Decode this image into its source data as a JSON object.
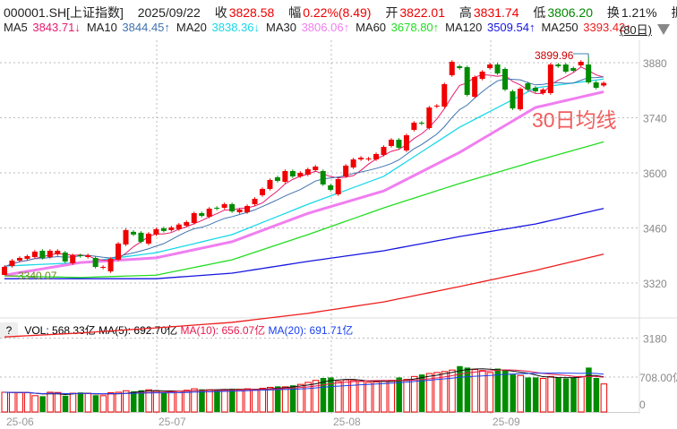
{
  "header": {
    "code": "000001.SH[上证指数]",
    "date": "2025/09/22",
    "close_label": "收",
    "close": "3828.58",
    "change_label": "幅",
    "change": "0.22%(8.49)",
    "open_label": "开",
    "open": "3822.01",
    "high_label": "高",
    "high": "3831.74",
    "low_label": "低",
    "low": "3806.20",
    "turnover_label": "换",
    "turnover": "1.21%",
    "amp_label": "振",
    "more": "..."
  },
  "ma_legend": [
    {
      "label": "MA5",
      "value": "3843.71↓",
      "color": "#e8196e"
    },
    {
      "label": "MA10",
      "value": "3844.45↑",
      "color": "#3f72b0"
    },
    {
      "label": "MA20",
      "value": "3838.36↓",
      "color": "#19d8e8"
    },
    {
      "label": "MA30",
      "value": "3806.06↑",
      "color": "#f07ef0"
    },
    {
      "label": "MA60",
      "value": "3678.80↑",
      "color": "#22dd22"
    },
    {
      "label": "MA120",
      "value": "3509.54↑",
      "color": "#1515e0"
    },
    {
      "label": "MA250",
      "value": "3393.42↑",
      "color": "#ee1c1c"
    }
  ],
  "period": "(80日)",
  "annotation": "30日均线",
  "high_marker": "3899.96",
  "low_marker": "3340.07",
  "y_axis": [
    "3880",
    "3740",
    "3600",
    "3460",
    "3320",
    "3180"
  ],
  "vol_axis": [
    "708.00亿",
    "0"
  ],
  "x_axis": [
    "25-06",
    "25-07",
    "25-08",
    "25-09"
  ],
  "vol_legend": {
    "help": "?",
    "vol": "VOL: 568.33亿",
    "ma5": "MA(5): 692.70亿",
    "ma10": "MA(10): 656.07亿",
    "ma20": "MA(20): 691.71亿"
  },
  "colors": {
    "up": "#f00000",
    "down": "#008c00"
  },
  "chart_data": {
    "type": "candlestick",
    "ylim": [
      3160,
      3910
    ],
    "open": [
      3340.6,
      3363.3,
      3377.0,
      3381.5,
      3386.1,
      3402.0,
      3386.1,
      3392.9,
      3397.5,
      3370.2,
      3390.7,
      3386.1,
      3383.8,
      3358.8,
      3349.7,
      3379.3,
      3418.0,
      3450.1,
      3447.8,
      3420.2,
      3443.3,
      3459.1,
      3454.6,
      3456.9,
      3465.8,
      3472.6,
      3497.6,
      3488.5,
      3511.3,
      3511.3,
      3520.4,
      3499.9,
      3499.9,
      3520.4,
      3543.2,
      3559.1,
      3588.7,
      3577.3,
      3604.6,
      3591.0,
      3595.5,
      3606.9,
      3604.6,
      3568.2,
      3545.4,
      3591.0,
      3613.7,
      3634.2,
      3634.2,
      3634.2,
      3645.6,
      3668.3,
      3684.3,
      3656.9,
      3709.3,
      3727.5,
      3713.9,
      3768.5,
      3768.5,
      3848.1,
      3870.9,
      3868.6,
      3793.5,
      3839.0,
      3866.3,
      3875.4,
      3864.1,
      3807.2,
      3761.6,
      3827.6,
      3816.3,
      3802.6,
      3802.6,
      3875.4,
      3875.4,
      3866.3,
      3873.2,
      3875.4,
      3830.0,
      3822.01
    ],
    "close": [
      3361.0,
      3377.0,
      3383.8,
      3388.4,
      3399.8,
      3383.8,
      3402.0,
      3402.0,
      3374.7,
      3390.7,
      3388.4,
      3390.7,
      3361.0,
      3361.0,
      3381.5,
      3420.2,
      3454.6,
      3443.3,
      3424.8,
      3445.5,
      3456.9,
      3452.3,
      3461.4,
      3468.6,
      3474.9,
      3497.6,
      3490.8,
      3509.0,
      3509.0,
      3520.4,
      3502.2,
      3506.7,
      3515.8,
      3534.0,
      3559.1,
      3581.9,
      3579.6,
      3604.6,
      3591.0,
      3600.1,
      3609.2,
      3616.0,
      3570.5,
      3556.8,
      3584.1,
      3618.3,
      3634.2,
      3638.7,
      3636.5,
      3647.8,
      3666.0,
      3684.3,
      3663.8,
      3695.6,
      3727.5,
      3725.2,
      3766.2,
      3770.8,
      3825.4,
      3882.3,
      3866.3,
      3798.1,
      3843.6,
      3857.2,
      3875.4,
      3852.7,
      3811.7,
      3763.9,
      3814.0,
      3811.7,
      3807.2,
      3811.7,
      3875.4,
      3870.9,
      3857.2,
      3859.5,
      3882.3,
      3830.0,
      3816.3,
      3828.58
    ],
    "ma_samples_every_10_days": {
      "MA20": [
        3363,
        3372,
        3397,
        3443,
        3520,
        3591,
        3716,
        3816,
        3838.36
      ],
      "MA30": [
        3340,
        3372,
        3384,
        3425,
        3497,
        3554,
        3652,
        3766,
        3806.06
      ],
      "MA60": [
        3338,
        3334,
        3340,
        3379,
        3443,
        3511,
        3573,
        3630,
        3678.8
      ],
      "MA120": [
        3331,
        3331,
        3331,
        3345,
        3375,
        3402,
        3438,
        3470,
        3509.54
      ],
      "MA250": [
        3183,
        3193,
        3206,
        3220,
        3243,
        3272,
        3311,
        3352,
        3393.42
      ]
    },
    "volume": [
      400,
      395,
      390,
      395,
      330,
      320,
      400,
      395,
      330,
      380,
      395,
      380,
      340,
      330,
      390,
      400,
      430,
      420,
      440,
      450,
      430,
      400,
      410,
      420,
      440,
      470,
      460,
      450,
      440,
      455,
      470,
      460,
      470,
      450,
      480,
      500,
      520,
      510,
      540,
      560,
      600,
      640,
      690,
      700,
      620,
      650,
      640,
      620,
      600,
      610,
      620,
      640,
      700,
      660,
      720,
      760,
      780,
      800,
      820,
      850,
      930,
      900,
      860,
      840,
      800,
      880,
      860,
      760,
      740,
      700,
      700,
      680,
      720,
      700,
      680,
      700,
      720,
      900,
      690,
      568.33
    ],
    "vol_ylim": [
      0,
      950
    ]
  }
}
